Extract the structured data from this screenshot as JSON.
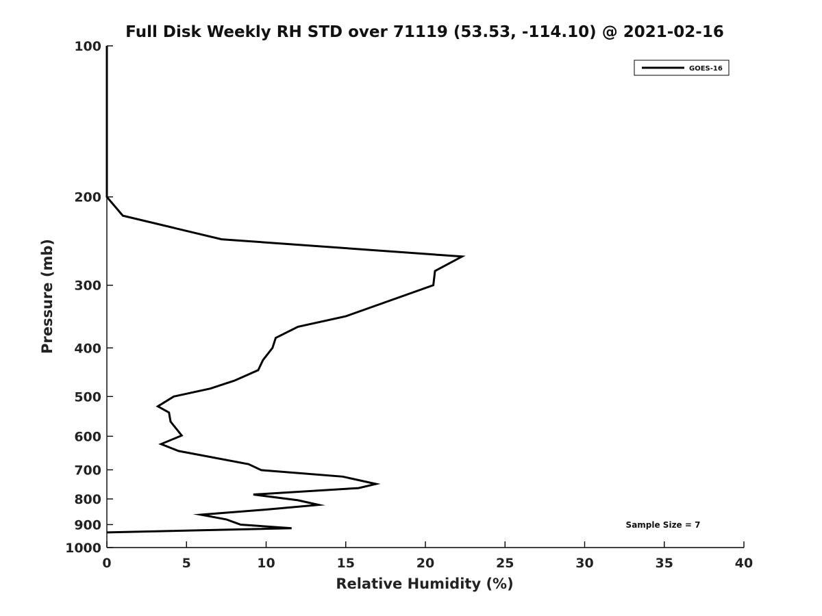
{
  "chart_data": {
    "type": "line",
    "title": "Full Disk Weekly RH STD over 71119 (53.53, -114.10) @ 2021-02-16",
    "xlabel": "Relative Humidity (%)",
    "ylabel": "Pressure (mb)",
    "xlim": [
      0,
      40
    ],
    "ylim": [
      100,
      1000
    ],
    "yscale": "log",
    "y_inverted": true,
    "x_ticks": [
      0,
      5,
      10,
      15,
      20,
      25,
      30,
      35,
      40
    ],
    "y_ticks": [
      100,
      200,
      300,
      400,
      500,
      600,
      700,
      800,
      900,
      1000
    ],
    "grid": false,
    "legend_position": "top-right",
    "series": [
      {
        "name": "GOES-16",
        "color": "#000000",
        "points": [
          {
            "x": 0.0,
            "y": 100
          },
          {
            "x": 0.0,
            "y": 200
          },
          {
            "x": 1.0,
            "y": 218
          },
          {
            "x": 7.2,
            "y": 243
          },
          {
            "x": 22.3,
            "y": 263
          },
          {
            "x": 20.6,
            "y": 281
          },
          {
            "x": 20.5,
            "y": 300
          },
          {
            "x": 15.0,
            "y": 346
          },
          {
            "x": 12.0,
            "y": 363
          },
          {
            "x": 10.6,
            "y": 382
          },
          {
            "x": 10.4,
            "y": 400
          },
          {
            "x": 9.8,
            "y": 423
          },
          {
            "x": 9.5,
            "y": 443
          },
          {
            "x": 8.0,
            "y": 465
          },
          {
            "x": 6.5,
            "y": 482
          },
          {
            "x": 4.2,
            "y": 500
          },
          {
            "x": 3.2,
            "y": 523
          },
          {
            "x": 3.9,
            "y": 538
          },
          {
            "x": 4.0,
            "y": 561
          },
          {
            "x": 4.7,
            "y": 598
          },
          {
            "x": 3.4,
            "y": 622
          },
          {
            "x": 4.5,
            "y": 642
          },
          {
            "x": 8.9,
            "y": 682
          },
          {
            "x": 9.7,
            "y": 701
          },
          {
            "x": 14.8,
            "y": 722
          },
          {
            "x": 16.9,
            "y": 747
          },
          {
            "x": 15.8,
            "y": 761
          },
          {
            "x": 9.2,
            "y": 784
          },
          {
            "x": 12.0,
            "y": 805
          },
          {
            "x": 13.3,
            "y": 822
          },
          {
            "x": 10.0,
            "y": 840
          },
          {
            "x": 5.9,
            "y": 860
          },
          {
            "x": 7.5,
            "y": 879
          },
          {
            "x": 8.4,
            "y": 900
          },
          {
            "x": 11.6,
            "y": 915
          },
          {
            "x": 0.0,
            "y": 933
          }
        ]
      }
    ],
    "annotations": [
      {
        "text": "Sample Size = 7",
        "position": "bottom-right"
      }
    ]
  }
}
